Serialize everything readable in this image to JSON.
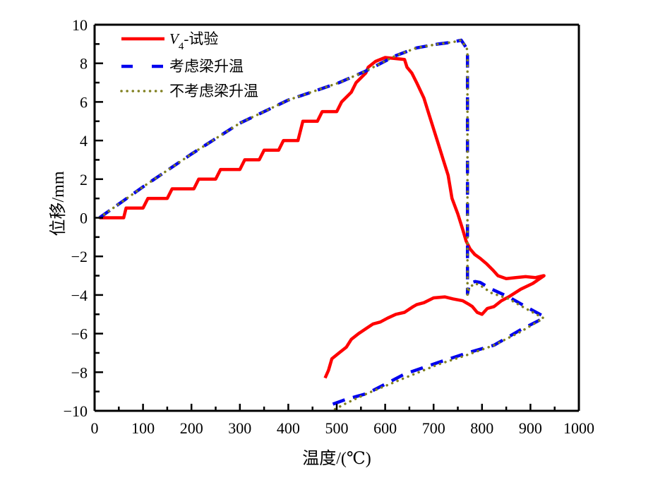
{
  "chart_data": {
    "type": "line",
    "title": "",
    "xlabel": "温度/(℃)",
    "ylabel": "位移/mm",
    "xlim": [
      0,
      1000
    ],
    "ylim": [
      -10,
      10
    ],
    "xticks": [
      0,
      100,
      200,
      300,
      400,
      500,
      600,
      700,
      800,
      900,
      1000
    ],
    "yticks": [
      -10,
      -8,
      -6,
      -4,
      -2,
      0,
      2,
      4,
      6,
      8,
      10
    ],
    "xtick_labels": [
      "0",
      "100",
      "200",
      "300",
      "400",
      "500",
      "600",
      "700",
      "800",
      "900",
      "1000"
    ],
    "ytick_labels": [
      "−10",
      "−8",
      "−6",
      "−4",
      "−2",
      "0",
      "2",
      "4",
      "6",
      "8",
      "10"
    ],
    "grid": false,
    "legend_position": "top-left",
    "series": [
      {
        "name": "V4-试验",
        "name_main": "V",
        "name_sub": "4",
        "name_suffix": "-试验",
        "color": "#ff0000",
        "style": "solid",
        "x": [
          10,
          60,
          65,
          100,
          110,
          150,
          160,
          205,
          215,
          250,
          260,
          300,
          310,
          340,
          350,
          380,
          390,
          420,
          430,
          460,
          470,
          500,
          510,
          530,
          540,
          560,
          565,
          580,
          600,
          620,
          640,
          645,
          655,
          665,
          680,
          690,
          700,
          710,
          720,
          730,
          738,
          750,
          760,
          767,
          775,
          785,
          796,
          810,
          822,
          833,
          850,
          870,
          890,
          910,
          927,
          928,
          905,
          880,
          855,
          840,
          825,
          811,
          800,
          790,
          780,
          774,
          760,
          740,
          723,
          700,
          680,
          665,
          658,
          640,
          622,
          605,
          590,
          575,
          563,
          545,
          530,
          520,
          505,
          490,
          483,
          476
        ],
        "y": [
          0,
          0,
          0.5,
          0.5,
          1.0,
          1.0,
          1.5,
          1.5,
          2.0,
          2.0,
          2.5,
          2.5,
          3.0,
          3.0,
          3.5,
          3.5,
          4.0,
          4.0,
          5.0,
          5.0,
          5.5,
          5.5,
          6.0,
          6.5,
          7.0,
          7.5,
          7.8,
          8.1,
          8.3,
          8.25,
          8.2,
          7.8,
          7.5,
          7.0,
          6.2,
          5.4,
          4.6,
          3.8,
          3.0,
          2.2,
          1.0,
          0.2,
          -0.6,
          -1.2,
          -1.6,
          -1.9,
          -2.1,
          -2.4,
          -2.7,
          -3.0,
          -3.15,
          -3.1,
          -3.05,
          -3.1,
          -3.0,
          -3.0,
          -3.4,
          -3.7,
          -4.1,
          -4.3,
          -4.6,
          -4.7,
          -5.0,
          -4.9,
          -4.6,
          -4.5,
          -4.3,
          -4.2,
          -4.1,
          -4.15,
          -4.4,
          -4.5,
          -4.6,
          -4.9,
          -5.0,
          -5.2,
          -5.4,
          -5.5,
          -5.7,
          -6.0,
          -6.3,
          -6.7,
          -7.0,
          -7.3,
          -7.9,
          -8.3
        ]
      },
      {
        "name": "考虑梁升温",
        "color": "#0000ee",
        "style": "dashed",
        "x": [
          10,
          100,
          200,
          300,
          400,
          505,
          560,
          622,
          665,
          709,
          740,
          757,
          765,
          770,
          770,
          774,
          786,
          796,
          820,
          855,
          890,
          927,
          927,
          880,
          825,
          770,
          709,
          640,
          563,
          520,
          476
        ],
        "y": [
          0,
          1.6,
          3.3,
          4.9,
          6.1,
          7.0,
          7.6,
          8.4,
          8.8,
          9.0,
          9.1,
          9.2,
          8.9,
          8.7,
          -3.95,
          -3.4,
          -3.3,
          -3.35,
          -3.7,
          -4.1,
          -4.6,
          -5.1,
          -5.2,
          -5.8,
          -6.6,
          -7.0,
          -7.5,
          -8.1,
          -9.1,
          -9.4,
          -9.8
        ]
      },
      {
        "name": "不考虑梁升温",
        "color": "#808020",
        "style": "dotted",
        "x": [
          10,
          100,
          200,
          300,
          400,
          505,
          560,
          622,
          665,
          709,
          740,
          757,
          765,
          770,
          770,
          774,
          786,
          796,
          820,
          855,
          890,
          927,
          927,
          880,
          825,
          770,
          709,
          640,
          563,
          520,
          490
        ],
        "y": [
          0,
          1.6,
          3.3,
          4.9,
          6.1,
          7.0,
          7.6,
          8.4,
          8.8,
          9.0,
          9.1,
          9.2,
          8.9,
          8.7,
          -4.0,
          -3.6,
          -3.4,
          -3.5,
          -3.9,
          -4.2,
          -4.7,
          -5.2,
          -5.2,
          -5.9,
          -6.6,
          -7.1,
          -7.6,
          -8.3,
          -9.1,
          -9.6,
          -10.0
        ]
      }
    ]
  }
}
